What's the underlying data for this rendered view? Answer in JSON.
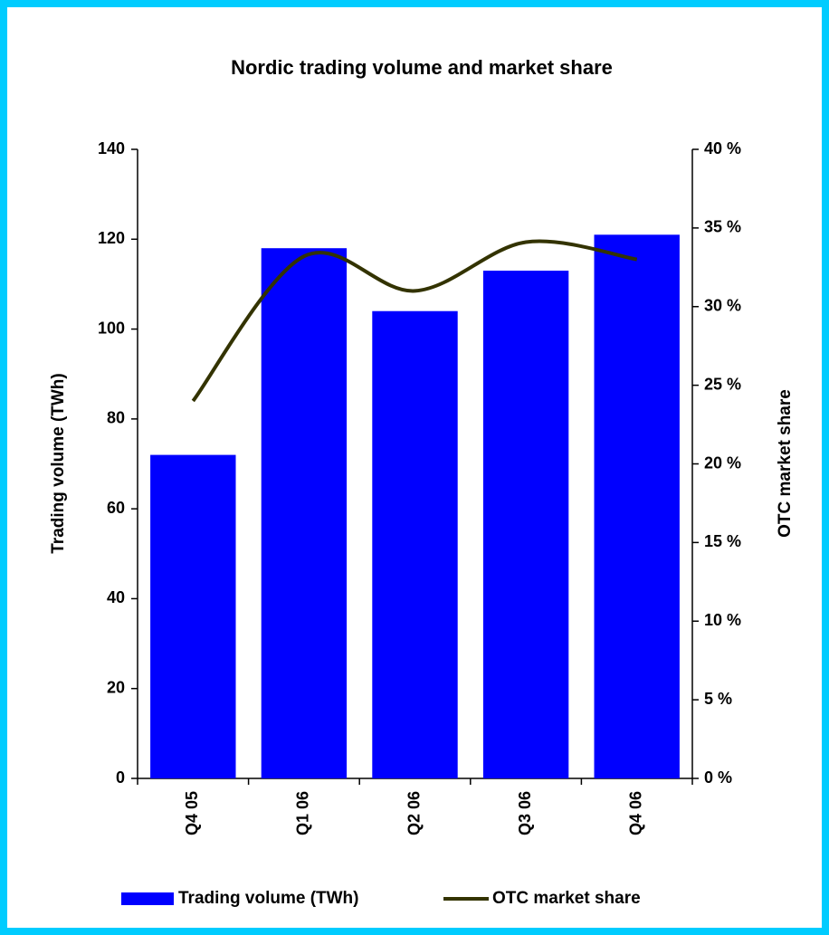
{
  "chart_data": {
    "type": "bar",
    "title": "Nordic trading volume and market share",
    "categories": [
      "Q4 05",
      "Q1 06",
      "Q2 06",
      "Q3 06",
      "Q4 06"
    ],
    "series": [
      {
        "name": "Trading volume (TWh)",
        "color": "#0000ff",
        "type": "bar",
        "values": [
          72,
          118,
          104,
          113,
          121
        ]
      },
      {
        "name": "OTC market share",
        "color": "#333300",
        "type": "line",
        "axis": "y2",
        "values": [
          24,
          33.2,
          31,
          34.1,
          33
        ]
      }
    ],
    "ylabel": "Trading volume (TWh)",
    "y2label": "OTC market share",
    "ylim": [
      0,
      140
    ],
    "yticks": [
      0,
      20,
      40,
      60,
      80,
      100,
      120,
      140
    ],
    "y2lim": [
      0,
      40
    ],
    "y2ticks": [
      {
        "value": 0,
        "label": "0 %"
      },
      {
        "value": 5,
        "label": "5 %"
      },
      {
        "value": 10,
        "label": "10 %"
      },
      {
        "value": 15,
        "label": "15 %"
      },
      {
        "value": 20,
        "label": "20 %"
      },
      {
        "value": 25,
        "label": "25 %"
      },
      {
        "value": 30,
        "label": "30 %"
      },
      {
        "value": 35,
        "label": "35 %"
      },
      {
        "value": 40,
        "label": "40 %"
      }
    ],
    "legend": "bottom"
  }
}
